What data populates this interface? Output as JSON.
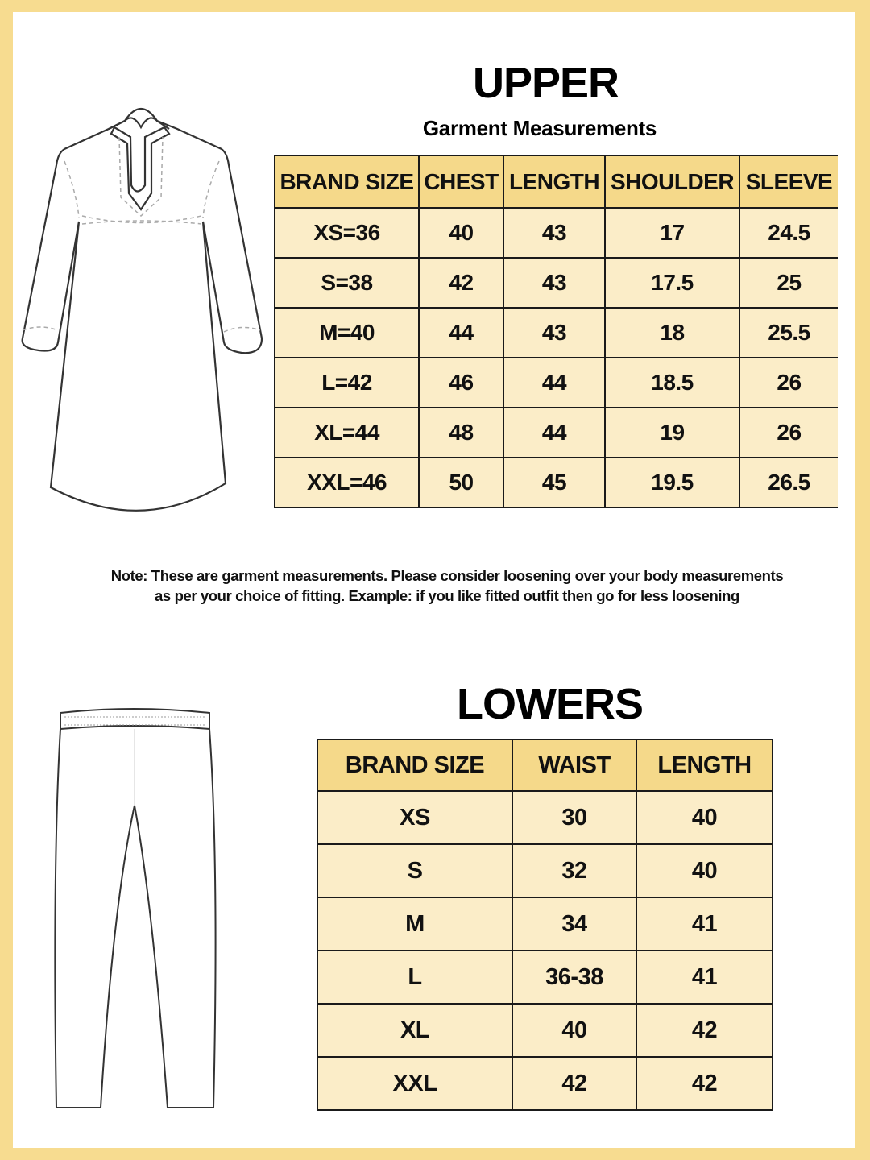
{
  "upper": {
    "title": "UPPER",
    "subtitle": "Garment Measurements",
    "headers": [
      "BRAND SIZE",
      "CHEST",
      "LENGTH",
      "SHOULDER",
      "SLEEVE"
    ],
    "rows": [
      [
        "XS=36",
        "40",
        "43",
        "17",
        "24.5"
      ],
      [
        "S=38",
        "42",
        "43",
        "17.5",
        "25"
      ],
      [
        "M=40",
        "44",
        "43",
        "18",
        "25.5"
      ],
      [
        "L=42",
        "46",
        "44",
        "18.5",
        "26"
      ],
      [
        "XL=44",
        "48",
        "44",
        "19",
        "26"
      ],
      [
        "XXL=46",
        "50",
        "45",
        "19.5",
        "26.5"
      ]
    ]
  },
  "note": {
    "line1": "Note: These are garment measurements. Please consider loosening over your body measurements",
    "line2": "as per your choice of fitting. Example: if you like fitted outfit then go for less loosening"
  },
  "lowers": {
    "title": "LOWERS",
    "headers": [
      "BRAND SIZE",
      "WAIST",
      "LENGTH"
    ],
    "rows": [
      [
        "XS",
        "30",
        "40"
      ],
      [
        "S",
        "32",
        "40"
      ],
      [
        "M",
        "34",
        "41"
      ],
      [
        "L",
        "36-38",
        "41"
      ],
      [
        "XL",
        "40",
        "42"
      ],
      [
        "XXL",
        "42",
        "42"
      ]
    ]
  },
  "colors": {
    "frame": "#f7dc90",
    "header": "#f5d98a",
    "cell": "#fbedc8"
  },
  "icons": [
    "kurta-illustration",
    "pants-illustration"
  ]
}
